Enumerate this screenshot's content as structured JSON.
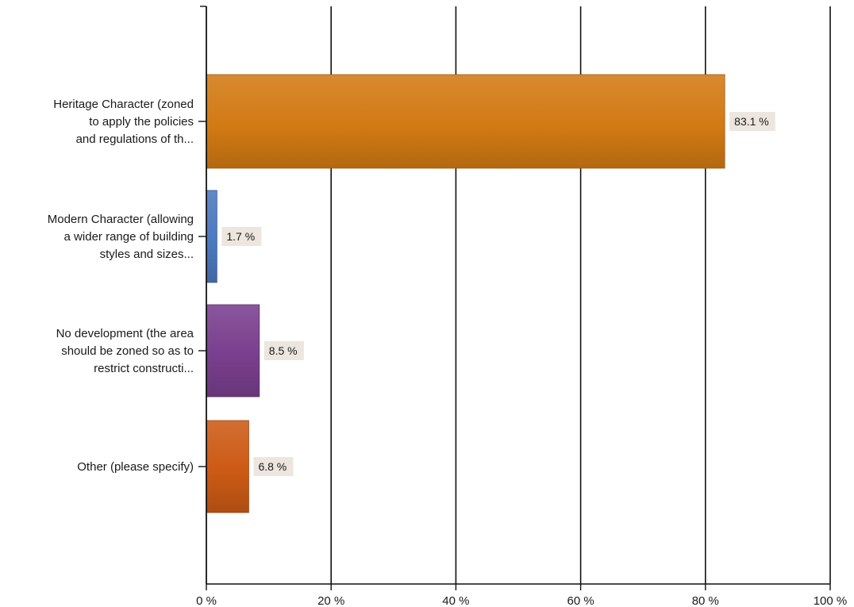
{
  "chart_data": {
    "type": "bar",
    "orientation": "horizontal",
    "categories": [
      [
        "Heritage Character (zoned",
        "to apply the policies",
        "and regulations of th..."
      ],
      [
        "Modern Character (allowing",
        "a wider range of building",
        "styles and sizes..."
      ],
      [
        "No development (the area",
        "should be zoned so as to",
        "restrict constructi..."
      ],
      [
        "Other (please specify)"
      ]
    ],
    "values": [
      83.1,
      1.7,
      8.5,
      6.8
    ],
    "data_labels": [
      "83.1 %",
      "1.7 %",
      "8.5 %",
      "6.8 %"
    ],
    "xlim": [
      0,
      100
    ],
    "x_ticks": [
      0,
      20,
      40,
      60,
      80,
      100
    ],
    "x_tick_labels": [
      "0 %",
      "20 %",
      "40 %",
      "60 %",
      "80 %",
      "100 %"
    ],
    "grid": true,
    "legend": "none",
    "colors": [
      "#d27a14",
      "#4d79c0",
      "#7a3f8e",
      "#cc5a15"
    ],
    "title": "",
    "xlabel": "",
    "ylabel": ""
  }
}
